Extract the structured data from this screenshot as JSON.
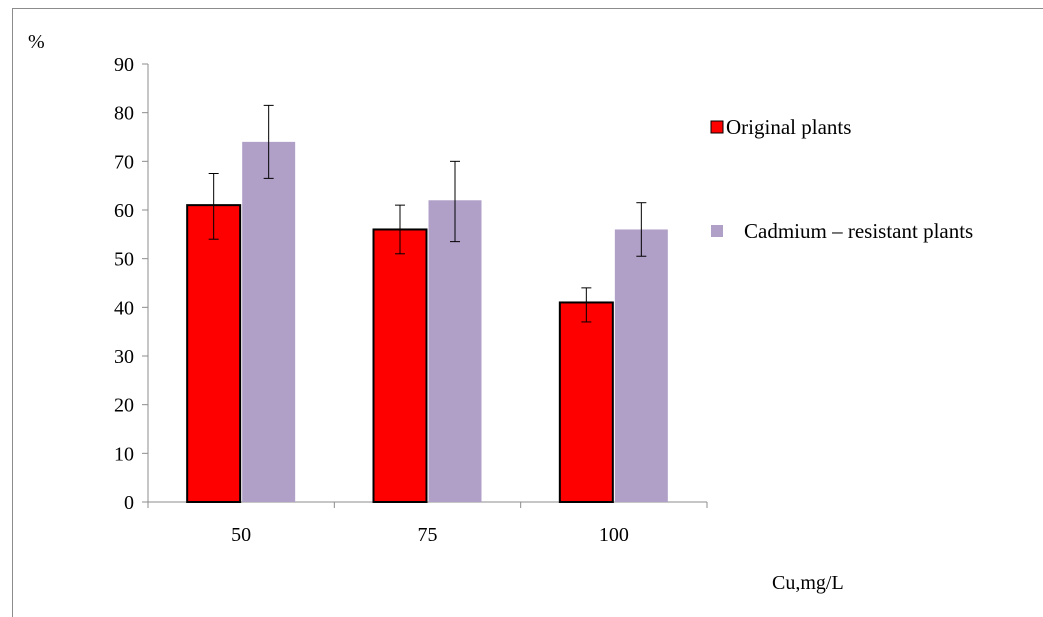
{
  "chart_data": {
    "type": "bar",
    "title": "",
    "ylabel": "%",
    "xlabel": "Cu,mg/L",
    "categories": [
      "50",
      "75",
      "100"
    ],
    "ylim": [
      0,
      90
    ],
    "yticks": [
      "0",
      "10",
      "20",
      "30",
      "40",
      "50",
      "60",
      "70",
      "80",
      "90"
    ],
    "grid": false,
    "legend_position": "right",
    "series": [
      {
        "name": "Original plants",
        "color": "#ff0000",
        "outline": "#000000",
        "values": [
          61,
          56,
          41
        ],
        "error_low": [
          54,
          51,
          37
        ],
        "error_high": [
          67.5,
          61,
          44
        ]
      },
      {
        "name": "Cadmium – resistant plants",
        "color": "#b0a0c8",
        "outline": "none",
        "values": [
          74,
          62,
          56
        ],
        "error_low": [
          66.5,
          53.5,
          50.5
        ],
        "error_high": [
          81.5,
          70,
          61.5
        ]
      }
    ]
  }
}
